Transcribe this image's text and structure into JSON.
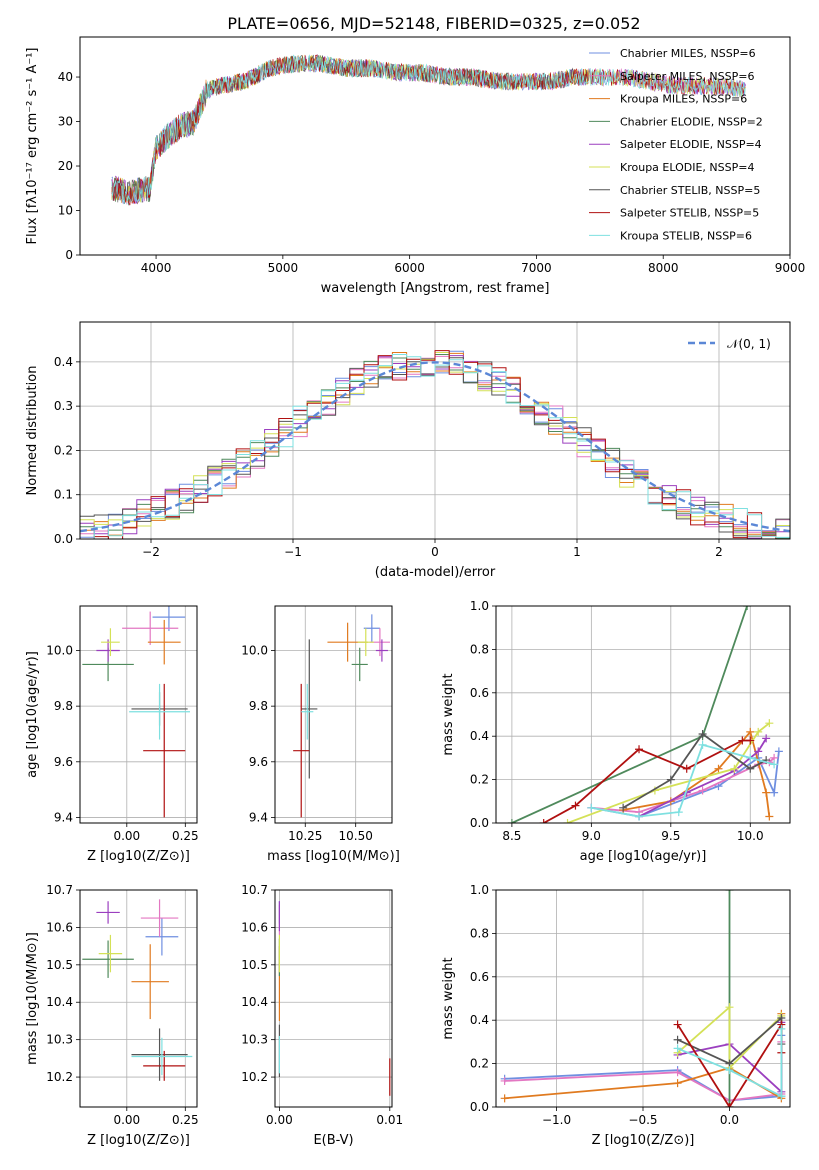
{
  "colors": {
    "series": [
      "#6f8fe0",
      "#e377c2",
      "#e07a1f",
      "#4f8a5c",
      "#9b3fbf",
      "#d4e157",
      "#555555",
      "#b01010",
      "#7ee0e0"
    ]
  },
  "chart_data": [
    {
      "id": "spectrum",
      "type": "line",
      "title": "PLATE=0656, MJD=52148, FIBERID=0325, z=0.052",
      "xlabel": "wavelength [Angstrom, rest frame]",
      "ylabel": "Flux [fλ10⁻¹⁷ erg cm⁻² s⁻¹ A⁻¹]",
      "xlim": [
        3400,
        9000
      ],
      "ylim": [
        0,
        49
      ],
      "xticks": [
        "4000",
        "5000",
        "6000",
        "7000",
        "8000",
        "9000"
      ],
      "yticks": [
        "0",
        "10",
        "20",
        "30",
        "40"
      ],
      "legend": [
        "Chabrier MILES, NSSP=6",
        "Salpeter MILES, NSSP=6",
        "Kroupa MILES, NSSP=6",
        "Chabrier ELODIE, NSSP=2",
        "Salpeter ELODIE, NSSP=4",
        "Kroupa ELODIE, NSSP=4",
        "Chabrier STELIB, NSSP=5",
        "Salpeter STELIB, NSSP=5",
        "Kroupa STELIB, NSSP=6"
      ],
      "legend_position": "right",
      "envelope_x": [
        3650,
        3800,
        3950,
        4000,
        4100,
        4200,
        4300,
        4400,
        4500,
        4700,
        4900,
        5100,
        5300,
        5500,
        5700,
        5900,
        6100,
        6300,
        6500,
        6700,
        6900,
        7100,
        7300,
        7500,
        7700,
        7900,
        8100,
        8300,
        8500,
        8650
      ],
      "envelope_y": [
        15,
        14,
        15,
        24,
        27,
        29,
        30,
        37,
        38,
        39,
        42,
        43,
        43,
        42,
        42,
        41,
        41,
        40,
        40,
        39,
        39,
        39,
        40,
        40,
        40,
        39,
        38,
        38,
        38,
        37
      ],
      "extents": [
        [
          3650,
          8650
        ],
        [
          3650,
          8650
        ],
        [
          3650,
          7400
        ],
        [
          3650,
          6800
        ],
        [
          3650,
          8650
        ],
        [
          3650,
          8650
        ],
        [
          3650,
          7400
        ],
        [
          3650,
          8650
        ],
        [
          3650,
          8650
        ]
      ]
    },
    {
      "id": "residuals",
      "type": "line",
      "xlabel": "(data-model)/error",
      "ylabel": "Normed distribution",
      "xlim": [
        -2.5,
        2.5
      ],
      "ylim": [
        0,
        0.49
      ],
      "xticks": [
        "-2",
        "-1",
        "0",
        "1",
        "2"
      ],
      "yticks": [
        "0.0",
        "0.1",
        "0.2",
        "0.3",
        "0.4"
      ],
      "legend": [
        "𝒩(0, 1)"
      ],
      "legend_position": "top-right",
      "grid": true,
      "normal_curve": {
        "mean": 0,
        "sigma": 1
      },
      "hist_bin_width": 0.1,
      "hist_values": [
        0.3989,
        0.3948,
        0.391,
        0.3814,
        0.3683,
        0.3521,
        0.3332,
        0.3123,
        0.2897,
        0.2661,
        0.242,
        0.2179,
        0.1942,
        0.1714,
        0.1497,
        0.1295,
        0.1109,
        0.094,
        0.079,
        0.0656,
        0.054,
        0.044,
        0.0355,
        0.0283,
        0.0224
      ]
    },
    {
      "id": "age-vs-Z",
      "type": "scatter",
      "xlabel": "Z [log10(Z/Z⊙)]",
      "ylabel": "age [log10(age/yr)]",
      "xlim": [
        -0.2,
        0.3
      ],
      "ylim": [
        9.38,
        10.16
      ],
      "xticks": [
        "0.00",
        "0.25"
      ],
      "yticks": [
        "9.4",
        "9.6",
        "9.8",
        "10.0"
      ],
      "grid": true,
      "points": [
        {
          "x": 0.18,
          "y": 10.12,
          "xerr": 0.07,
          "yerr": 0.05
        },
        {
          "x": 0.1,
          "y": 10.08,
          "xerr": 0.12,
          "yerr": 0.06
        },
        {
          "x": 0.16,
          "y": 10.03,
          "xerr": 0.07,
          "yerr": 0.08
        },
        {
          "x": -0.08,
          "y": 9.95,
          "xerr": 0.11,
          "yerr": 0.06
        },
        {
          "x": -0.08,
          "y": 10.0,
          "xerr": 0.05,
          "yerr": 0.04
        },
        {
          "x": -0.07,
          "y": 10.03,
          "xerr": 0.04,
          "yerr": 0.05
        },
        {
          "x": 0.14,
          "y": 9.79,
          "xerr": 0.12,
          "yerr": 0.06
        },
        {
          "x": 0.16,
          "y": 9.64,
          "xerr": 0.09,
          "yerr": 0.24
        },
        {
          "x": 0.14,
          "y": 9.78,
          "xerr": 0.13,
          "yerr": 0.1
        }
      ]
    },
    {
      "id": "age-vs-mass",
      "type": "scatter",
      "xlabel": "mass [log10(M/M⊙)]",
      "ylabel": "",
      "xlim": [
        10.1,
        10.68
      ],
      "ylim": [
        9.38,
        10.16
      ],
      "xticks": [
        "10.25",
        "10.50"
      ],
      "yticks": [
        "9.4",
        "9.6",
        "9.8",
        "10.0"
      ],
      "grid": true,
      "points": [
        {
          "x": 10.58,
          "y": 10.08,
          "xerr": 0.04,
          "yerr": 0.05
        },
        {
          "x": 10.62,
          "y": 10.03,
          "xerr": 0.05,
          "yerr": 0.05
        },
        {
          "x": 10.46,
          "y": 10.03,
          "xerr": 0.1,
          "yerr": 0.07
        },
        {
          "x": 10.52,
          "y": 9.95,
          "xerr": 0.04,
          "yerr": 0.06
        },
        {
          "x": 10.63,
          "y": 10.0,
          "xerr": 0.03,
          "yerr": 0.04
        },
        {
          "x": 10.55,
          "y": 10.03,
          "xerr": 0.04,
          "yerr": 0.05
        },
        {
          "x": 10.27,
          "y": 9.79,
          "xerr": 0.04,
          "yerr": 0.25
        },
        {
          "x": 10.23,
          "y": 9.64,
          "xerr": 0.04,
          "yerr": 0.24
        },
        {
          "x": 10.26,
          "y": 9.78,
          "xerr": 0.03,
          "yerr": 0.1
        }
      ]
    },
    {
      "id": "weight-vs-age",
      "type": "line",
      "xlabel": "age [log10(age/yr)]",
      "ylabel": "mass weight",
      "xlim": [
        8.4,
        10.25
      ],
      "ylim": [
        0,
        1.0
      ],
      "xticks": [
        "8.5",
        "9.0",
        "9.5",
        "10.0"
      ],
      "yticks": [
        "0.0",
        "0.2",
        "0.4",
        "0.6",
        "0.8",
        "1.0"
      ],
      "grid": true,
      "series": [
        {
          "x": [
            9.0,
            9.3,
            9.8,
            10.05,
            10.15,
            10.18
          ],
          "y": [
            0.07,
            0.03,
            0.17,
            0.3,
            0.14,
            0.33
          ]
        },
        {
          "x": [
            9.0,
            9.3,
            9.7,
            10.05,
            10.12,
            10.15
          ],
          "y": [
            0.07,
            0.05,
            0.15,
            0.27,
            0.28,
            0.3
          ]
        },
        {
          "x": [
            9.2,
            9.5,
            9.8,
            10.0,
            10.1,
            10.12
          ],
          "y": [
            0.06,
            0.1,
            0.25,
            0.42,
            0.14,
            0.03
          ]
        },
        {
          "x": [
            8.5,
            9.7,
            9.98
          ],
          "y": [
            0.0,
            0.4,
            1.0
          ]
        },
        {
          "x": [
            9.3,
            9.6,
            9.9,
            10.05,
            10.1
          ],
          "y": [
            0.03,
            0.14,
            0.24,
            0.33,
            0.39
          ]
        },
        {
          "x": [
            8.85,
            9.4,
            9.9,
            10.05,
            10.12
          ],
          "y": [
            0.0,
            0.15,
            0.25,
            0.42,
            0.46
          ]
        },
        {
          "x": [
            9.2,
            9.5,
            9.7,
            10.0,
            10.1
          ],
          "y": [
            0.07,
            0.2,
            0.41,
            0.25,
            0.29
          ]
        },
        {
          "x": [
            8.7,
            8.9,
            9.3,
            9.6,
            9.95,
            10.0
          ],
          "y": [
            0.0,
            0.08,
            0.34,
            0.25,
            0.38,
            0.38
          ]
        },
        {
          "x": [
            9.0,
            9.3,
            9.55,
            9.7,
            10.0,
            10.15
          ],
          "y": [
            0.07,
            0.03,
            0.05,
            0.36,
            0.3,
            0.27
          ]
        }
      ]
    },
    {
      "id": "mass-vs-Z",
      "type": "scatter",
      "xlabel": "Z [log10(Z/Z⊙)]",
      "ylabel": "mass [log10(M/M⊙)]",
      "xlim": [
        -0.2,
        0.3
      ],
      "ylim": [
        10.12,
        10.7
      ],
      "xticks": [
        "0.00",
        "0.25"
      ],
      "yticks": [
        "10.2",
        "10.3",
        "10.4",
        "10.5",
        "10.6",
        "10.7"
      ],
      "grid": true,
      "points": [
        {
          "x": 0.15,
          "y": 10.575,
          "xerr": 0.07,
          "yerr": 0.05
        },
        {
          "x": 0.14,
          "y": 10.625,
          "xerr": 0.08,
          "yerr": 0.05
        },
        {
          "x": 0.1,
          "y": 10.455,
          "xerr": 0.08,
          "yerr": 0.1
        },
        {
          "x": -0.08,
          "y": 10.515,
          "xerr": 0.11,
          "yerr": 0.05
        },
        {
          "x": -0.08,
          "y": 10.64,
          "xerr": 0.05,
          "yerr": 0.03
        },
        {
          "x": -0.07,
          "y": 10.53,
          "xerr": 0.05,
          "yerr": 0.05
        },
        {
          "x": 0.14,
          "y": 10.26,
          "xerr": 0.12,
          "yerr": 0.07
        },
        {
          "x": 0.16,
          "y": 10.23,
          "xerr": 0.09,
          "yerr": 0.04
        },
        {
          "x": 0.15,
          "y": 10.255,
          "xerr": 0.13,
          "yerr": 0.05
        }
      ]
    },
    {
      "id": "mass-vs-ebv",
      "type": "scatter",
      "xlabel": "E(B-V)",
      "ylabel": "",
      "xlim": [
        -0.0004,
        0.0102
      ],
      "ylim": [
        10.12,
        10.7
      ],
      "xticks": [
        "0.00",
        "0.01"
      ],
      "yticks": [
        "10.2",
        "10.3",
        "10.4",
        "10.5",
        "10.6",
        "10.7"
      ],
      "grid": true,
      "points": [
        {
          "x": 0.0,
          "y": 10.64,
          "xerr": 0,
          "yerr": 0.03
        },
        {
          "x": 0.0,
          "y": 10.62,
          "xerr": 0,
          "yerr": 0.04
        },
        {
          "x": 0.0,
          "y": 10.45,
          "xerr": 0,
          "yerr": 0.1
        },
        {
          "x": 0.0,
          "y": 10.52,
          "xerr": 0,
          "yerr": 0.05
        },
        {
          "x": 0.0,
          "y": 10.63,
          "xerr": 0,
          "yerr": 0.04
        },
        {
          "x": 0.0,
          "y": 10.53,
          "xerr": 0,
          "yerr": 0.05
        },
        {
          "x": 0.0,
          "y": 10.27,
          "xerr": 0,
          "yerr": 0.07
        },
        {
          "x": 0.01,
          "y": 10.2,
          "xerr": 0,
          "yerr": 0.05
        },
        {
          "x": 0.0,
          "y": 10.26,
          "xerr": 0,
          "yerr": 0.05
        }
      ]
    },
    {
      "id": "weight-vs-Z",
      "type": "line",
      "xlabel": "Z [log10(Z/Z⊙)]",
      "ylabel": "mass weight",
      "xlim": [
        -1.35,
        0.35
      ],
      "ylim": [
        0,
        1.0
      ],
      "xticks": [
        "-1.0",
        "-0.5",
        "0.0"
      ],
      "yticks": [
        "0.0",
        "0.2",
        "0.4",
        "0.6",
        "0.8",
        "1.0"
      ],
      "grid": true,
      "series": [
        {
          "x": [
            -1.3,
            -0.3,
            0.0,
            0.3,
            0.3
          ],
          "y": [
            0.13,
            0.17,
            0.03,
            0.05,
            0.33
          ]
        },
        {
          "x": [
            -1.3,
            -0.3,
            0.0,
            0.3,
            0.3
          ],
          "y": [
            0.12,
            0.16,
            0.03,
            0.06,
            0.3
          ]
        },
        {
          "x": [
            -1.3,
            -0.3,
            0.0,
            0.3,
            0.3
          ],
          "y": [
            0.04,
            0.11,
            0.18,
            0.04,
            0.43
          ]
        },
        {
          "x": [
            0.0,
            0.0
          ],
          "y": [
            0.0,
            1.0
          ]
        },
        {
          "x": [
            -0.3,
            0.0,
            0.3,
            0.3
          ],
          "y": [
            0.24,
            0.29,
            0.07,
            0.39
          ]
        },
        {
          "x": [
            -0.3,
            0.0,
            0.0,
            0.3
          ],
          "y": [
            0.25,
            0.46,
            0.18,
            0.42
          ]
        },
        {
          "x": [
            -0.3,
            0.0,
            0.3,
            0.3
          ],
          "y": [
            0.31,
            0.2,
            0.41,
            0.29
          ]
        },
        {
          "x": [
            -0.3,
            0.0,
            0.3,
            0.3
          ],
          "y": [
            0.38,
            0.0,
            0.38,
            0.25
          ]
        },
        {
          "x": [
            -0.3,
            0.0,
            0.3,
            0.3
          ],
          "y": [
            0.27,
            0.17,
            0.05,
            0.36
          ]
        }
      ]
    }
  ]
}
